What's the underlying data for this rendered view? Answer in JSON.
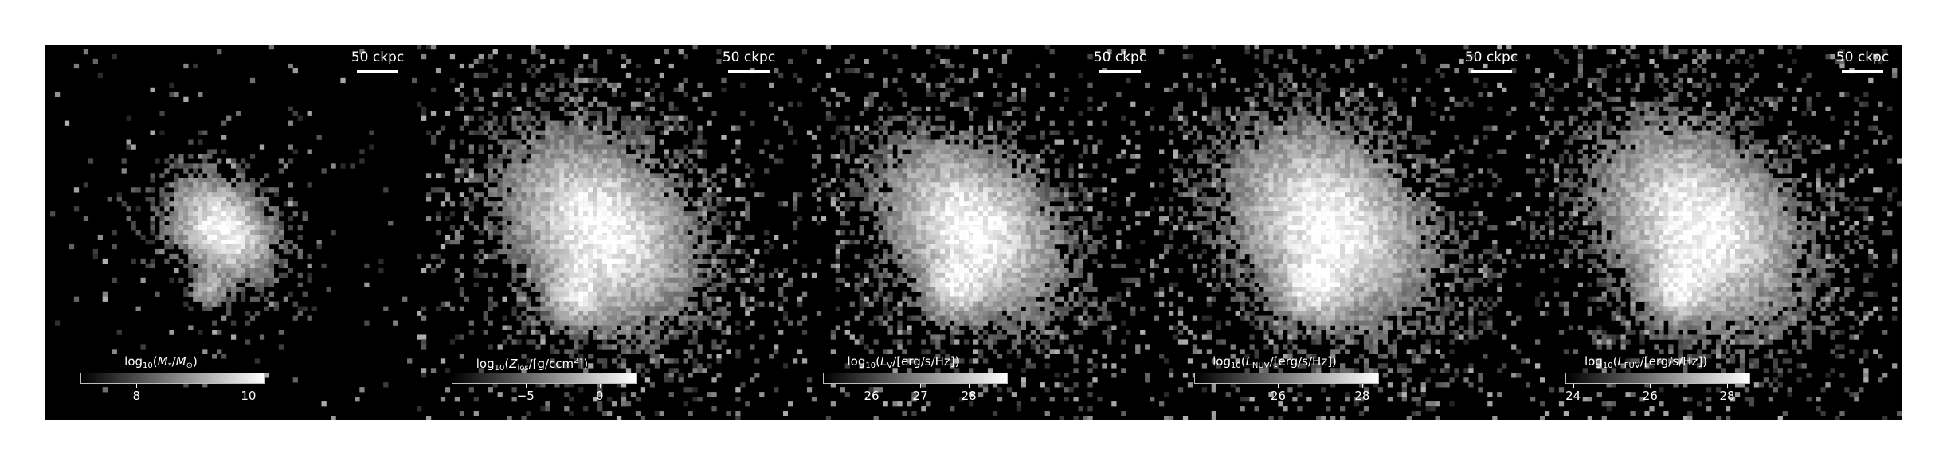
{
  "chart_data": [
    {
      "type": "heatmap",
      "colormap": "greys_r",
      "scale_bar": "50 ckpc",
      "colorbar": {
        "label_parts": [
          "log",
          "10",
          "(",
          "M",
          "*",
          "/",
          "M",
          "⊙",
          ")"
        ],
        "range": [
          7.0,
          10.3
        ],
        "ticks": [
          8,
          10
        ]
      },
      "center": [
        0.47,
        0.49
      ],
      "spread": 0.09,
      "extra_clump": [
        0.43,
        0.66
      ],
      "fill_fraction": 0.35
    },
    {
      "type": "heatmap",
      "colormap": "greys_r",
      "scale_bar": "50 ckpc",
      "colorbar": {
        "label_parts": [
          "log",
          "10",
          "(",
          "Z",
          "los",
          "/[g/ccm",
          "2",
          "])"
        ],
        "range": [
          -10,
          2.5
        ],
        "ticks": [
          -5,
          0
        ]
      },
      "center": [
        0.49,
        0.49
      ],
      "spread": 0.16,
      "extra_clump": [
        0.42,
        0.68
      ],
      "fill_fraction": 0.8
    },
    {
      "type": "heatmap",
      "colormap": "greys_r",
      "scale_bar": "50 ckpc",
      "colorbar": {
        "label_parts": [
          "log",
          "10",
          "(",
          "L",
          "V",
          "/[erg/s/Hz])"
        ],
        "range": [
          25,
          28.8
        ],
        "ticks": [
          26,
          27,
          28
        ]
      },
      "center": [
        0.49,
        0.49
      ],
      "spread": 0.15,
      "extra_clump": [
        0.44,
        0.66
      ],
      "fill_fraction": 0.7
    },
    {
      "type": "heatmap",
      "colormap": "greys_r",
      "scale_bar": "50 ckpc",
      "colorbar": {
        "label_parts": [
          "log",
          "10",
          "(",
          "L",
          "NUV",
          "/[erg/s/Hz])"
        ],
        "range": [
          24,
          28.4
        ],
        "ticks": [
          26,
          28
        ]
      },
      "center": [
        0.45,
        0.48
      ],
      "spread": 0.17,
      "extra_clump": [
        0.4,
        0.66
      ],
      "fill_fraction": 0.78
    },
    {
      "type": "heatmap",
      "colormap": "greys_r",
      "scale_bar": "50 ckpc",
      "colorbar": {
        "label_parts": [
          "log",
          "10",
          "(",
          "L",
          "FUV",
          "/[erg/s/Hz])"
        ],
        "range": [
          23.8,
          28.6
        ],
        "ticks": [
          24,
          26,
          28
        ]
      },
      "center": [
        0.45,
        0.48
      ],
      "spread": 0.17,
      "extra_clump": [
        0.39,
        0.66
      ],
      "fill_fraction": 0.78
    }
  ]
}
